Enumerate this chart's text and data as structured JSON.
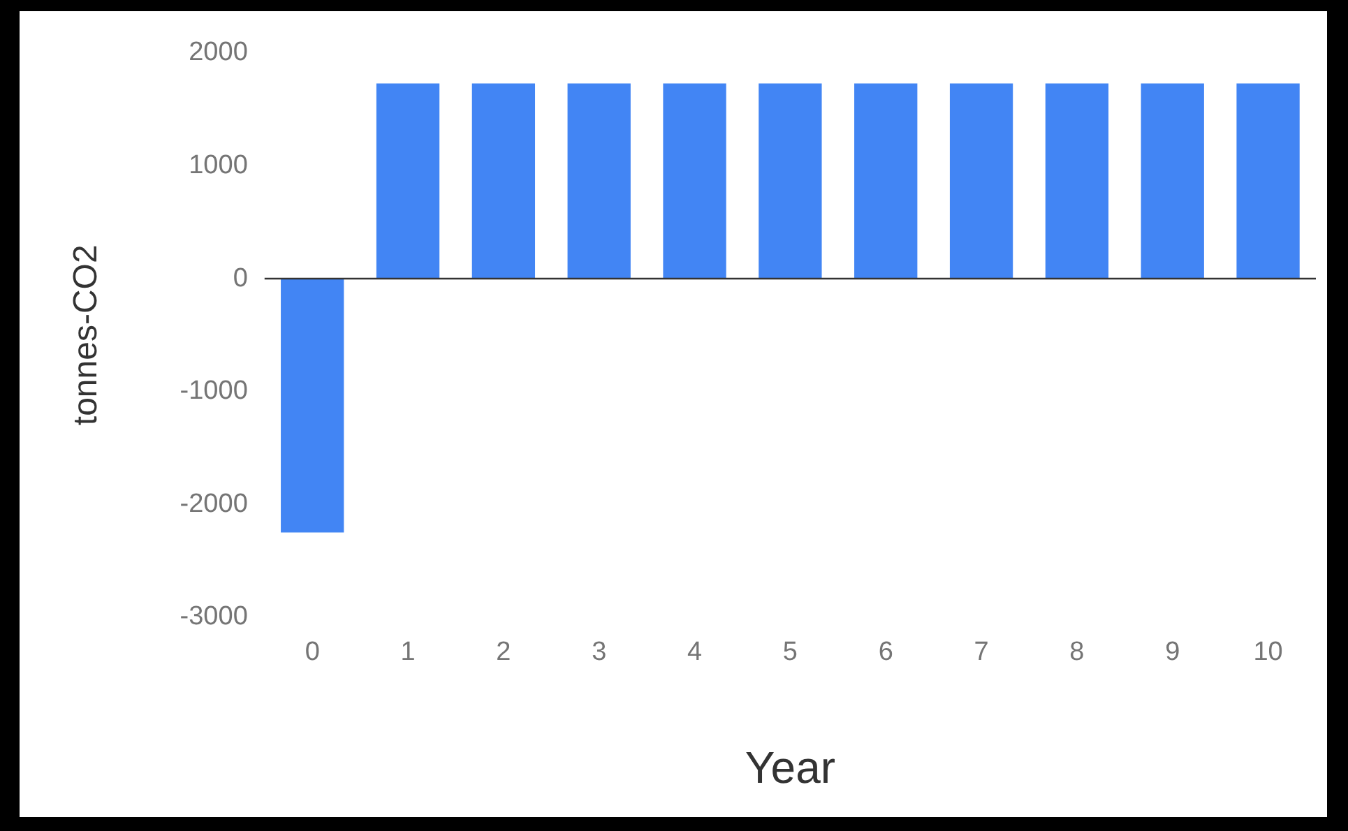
{
  "chart_data": {
    "type": "bar",
    "xlabel": "Year",
    "ylabel": "tonnes-CO2",
    "categories": [
      "0",
      "1",
      "2",
      "3",
      "4",
      "5",
      "6",
      "7",
      "8",
      "9",
      "10"
    ],
    "values": [
      -2250,
      1730,
      1730,
      1730,
      1730,
      1730,
      1730,
      1730,
      1730,
      1730,
      1730
    ],
    "color": "#4285f4",
    "ylim": [
      -3000,
      2000
    ],
    "yticks": [
      -3000,
      -2000,
      -1000,
      0,
      1000,
      2000
    ],
    "legend": false
  }
}
